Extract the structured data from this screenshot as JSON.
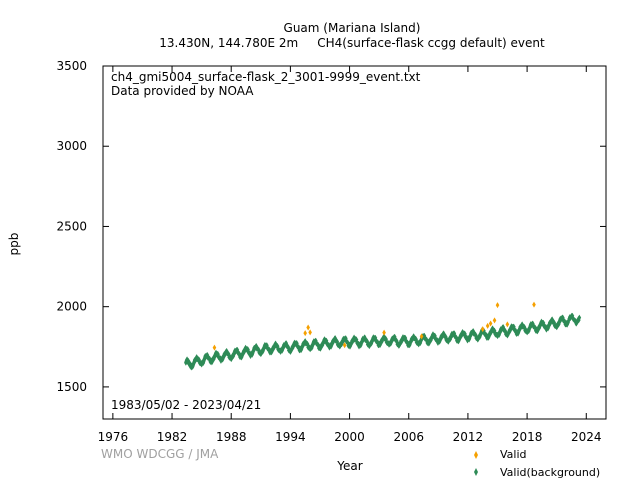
{
  "header": {
    "title": "Guam (Mariana Island)",
    "subtitle": "13.430N, 144.780E 2m     CH4(surface-flask ccgg default) event"
  },
  "notes": {
    "filename": "ch4_gmi5004_surface-flask_2_3001-9999_event.txt",
    "provider": "Data provided by NOAA",
    "date_range": "1983/05/02 - 2023/04/21"
  },
  "credit": "WMO WDCGG / JMA",
  "chart_data": {
    "type": "scatter",
    "title": "Guam (Mariana Island)",
    "xlabel": "Year",
    "ylabel": "ppb",
    "xlim": [
      1975,
      2026
    ],
    "ylim": [
      1300,
      3500
    ],
    "xticks": [
      1976,
      1982,
      1988,
      1994,
      2000,
      2006,
      2012,
      2018,
      2024
    ],
    "yticks": [
      1500,
      2000,
      2500,
      3000,
      3500
    ],
    "grid": false,
    "legend_position": "bottom-right",
    "colors": {
      "valid": "#f5a000",
      "background": "#2e8b57",
      "axis": "#000000",
      "credit": "#a0a0a0"
    },
    "series": [
      {
        "name": "Valid",
        "marker": "diamond",
        "color": "#f5a000",
        "x": [
          1986.3,
          1995.5,
          1995.8,
          1996.0,
          1999.5,
          2003.5,
          2007.3,
          2013.5,
          2014.0,
          2014.3,
          2014.7,
          2015.0,
          2016.0,
          2018.7
        ],
        "y": [
          1745,
          1835,
          1870,
          1840,
          1760,
          1838,
          1815,
          1860,
          1880,
          1895,
          1915,
          2010,
          1890,
          2013
        ]
      },
      {
        "name": "Valid(background)",
        "marker": "diamond",
        "color": "#2e8b57",
        "description_points": "seasonal band",
        "x": [
          1983.4,
          1984.0,
          1985.0,
          1986.0,
          1987.0,
          1988.0,
          1989.0,
          1990.0,
          1991.0,
          1992.0,
          1993.0,
          1994.0,
          1995.0,
          1996.0,
          1997.0,
          1998.0,
          1999.0,
          2000.0,
          2001.0,
          2002.0,
          2003.0,
          2004.0,
          2005.0,
          2006.0,
          2007.0,
          2008.0,
          2009.0,
          2010.0,
          2011.0,
          2012.0,
          2013.0,
          2014.0,
          2015.0,
          2016.0,
          2017.0,
          2018.0,
          2019.0,
          2020.0,
          2021.0,
          2022.0,
          2023.3
        ],
        "y": [
          1640,
          1650,
          1665,
          1680,
          1690,
          1700,
          1712,
          1722,
          1732,
          1740,
          1742,
          1748,
          1755,
          1760,
          1765,
          1772,
          1778,
          1780,
          1781,
          1782,
          1785,
          1786,
          1785,
          1786,
          1790,
          1797,
          1802,
          1808,
          1812,
          1818,
          1823,
          1831,
          1840,
          1850,
          1858,
          1865,
          1873,
          1885,
          1898,
          1915,
          1925
        ]
      }
    ]
  }
}
